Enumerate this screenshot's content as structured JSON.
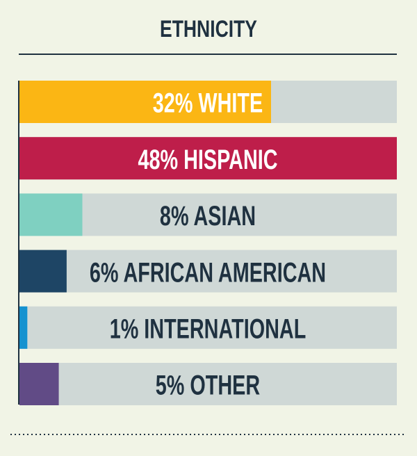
{
  "chart_data": {
    "type": "hbar",
    "title": "ETHNICITY",
    "values": [
      32,
      48,
      8,
      6,
      1,
      5
    ],
    "value_labels": [
      "32% WHITE",
      "48% HISPANIC",
      "8% ASIAN",
      "6% AFRICAN AMERICAN",
      "1% INTERNATIONAL",
      "5% OTHER"
    ],
    "colors": [
      "#fbb614",
      "#be1e4a",
      "#7fd0c1",
      "#1e4565",
      "#1592d0",
      "#614b86"
    ],
    "label_colors": [
      "#ffffff",
      "#ffffff",
      "#1f3140",
      "#1f3140",
      "#1f3140",
      "#1f3140"
    ],
    "track_color": "#cfd8d6"
  }
}
